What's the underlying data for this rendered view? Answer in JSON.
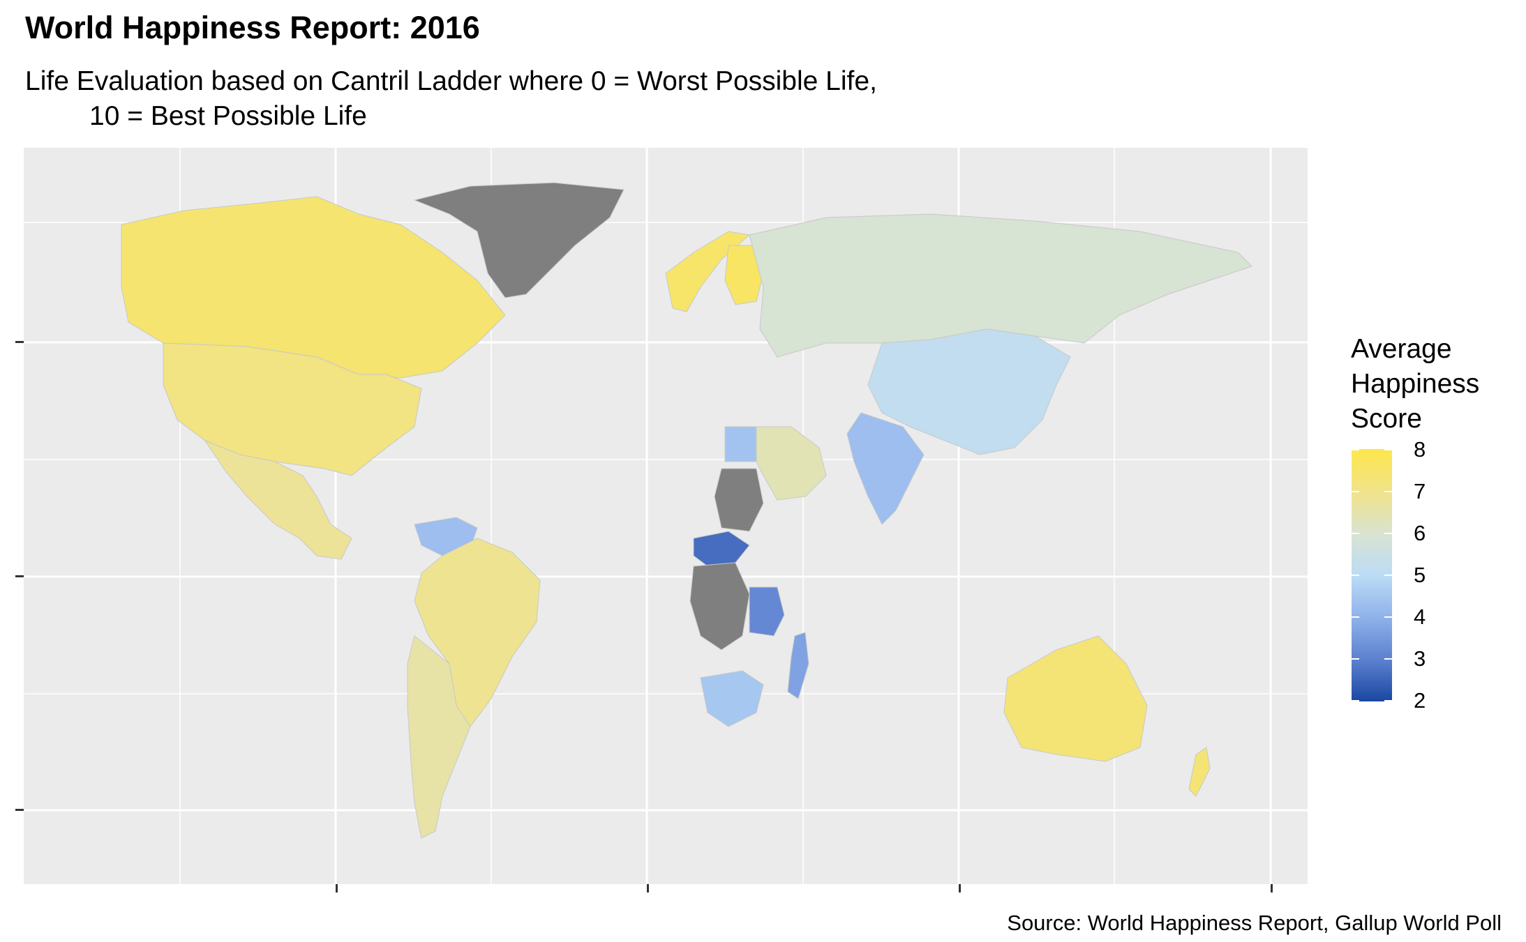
{
  "title": "World Happiness Report: 2016",
  "subtitle_line1": "Life Evaluation based on Cantril Ladder where 0 = Worst Possible Life,",
  "subtitle_line2": "10 = Best Possible Life",
  "caption": "Source: World Happiness Report, Gallup World Poll",
  "legend": {
    "title_lines": [
      "Average",
      "Happiness",
      "Score"
    ],
    "ticks": [
      "8",
      "7",
      "6",
      "5",
      "4",
      "3",
      "2"
    ],
    "range": [
      2,
      8
    ],
    "colors": {
      "low": "#1a47a1",
      "mid": "#bcdcf6",
      "high": "#fde64b",
      "no_data": "#7f7f7f"
    }
  },
  "map": {
    "type": "choropleth",
    "background": "#ebebeb",
    "gridlines": "white",
    "regions": [
      {
        "name": "Canada",
        "score": 7.4
      },
      {
        "name": "United States",
        "score": 7.1
      },
      {
        "name": "Mexico",
        "score": 6.8
      },
      {
        "name": "Greenland",
        "score": null
      },
      {
        "name": "Brazil",
        "score": 6.9
      },
      {
        "name": "Argentina",
        "score": 6.6
      },
      {
        "name": "Venezuela",
        "score": 4.3
      },
      {
        "name": "Russia",
        "score": 6.0
      },
      {
        "name": "China",
        "score": 5.2
      },
      {
        "name": "India",
        "score": 4.3
      },
      {
        "name": "Australia",
        "score": 7.3
      },
      {
        "name": "New Zealand",
        "score": 7.3
      },
      {
        "name": "Norway",
        "score": 7.5
      },
      {
        "name": "Finland",
        "score": 7.6
      },
      {
        "name": "Saudi Arabia",
        "score": 6.4
      },
      {
        "name": "Egypt",
        "score": 4.4
      },
      {
        "name": "South Africa",
        "score": 4.5
      },
      {
        "name": "Madagascar",
        "score": 3.7
      },
      {
        "name": "Tanzania",
        "score": 3.2
      },
      {
        "name": "Central African Republic",
        "score": 2.7
      },
      {
        "name": "DR Congo",
        "score": null
      },
      {
        "name": "Sudan",
        "score": null
      }
    ]
  }
}
